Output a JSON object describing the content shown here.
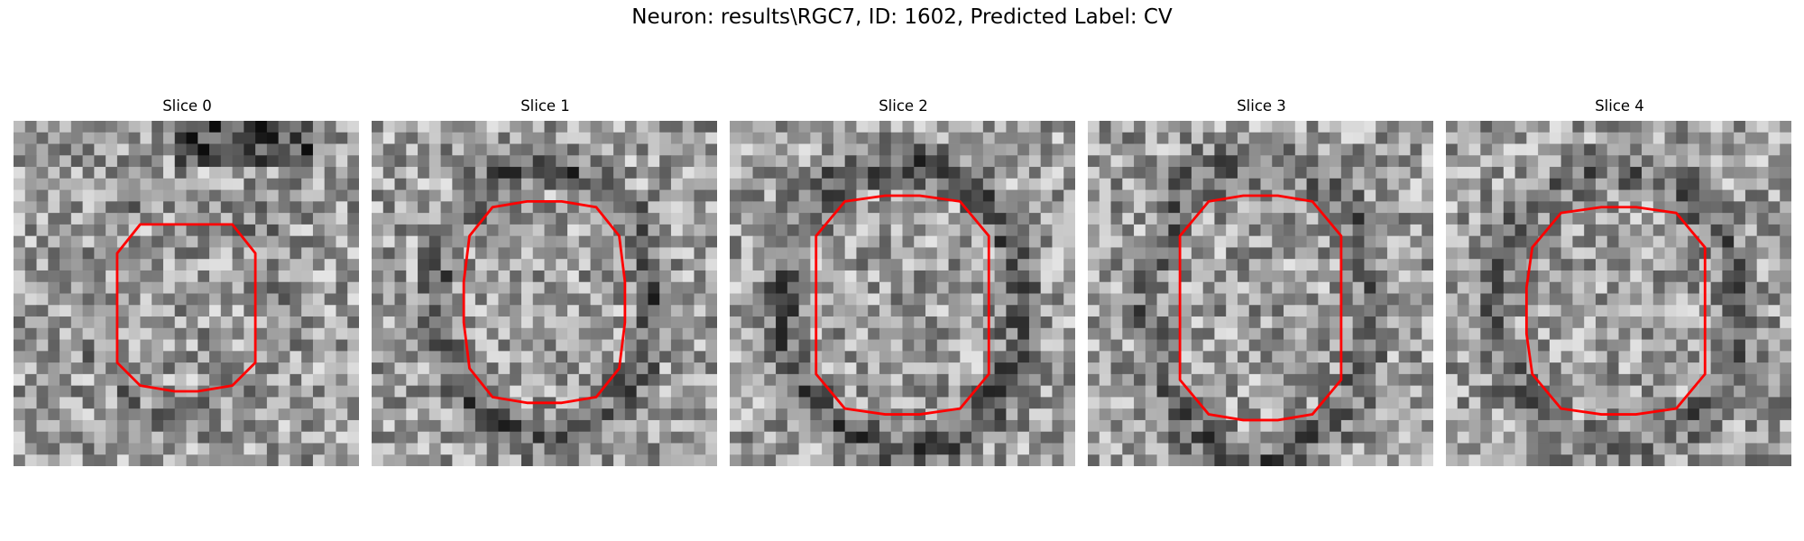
{
  "figure": {
    "title": "Neuron: results\\RGC7, ID: 1602, Predicted Label: CV"
  },
  "panels": [
    {
      "title": "Slice 0"
    },
    {
      "title": "Slice 1"
    },
    {
      "title": "Slice 2"
    },
    {
      "title": "Slice 3"
    },
    {
      "title": "Slice 4"
    }
  ],
  "colors": {
    "contour": "#ff0000",
    "colormap": "gray"
  }
}
